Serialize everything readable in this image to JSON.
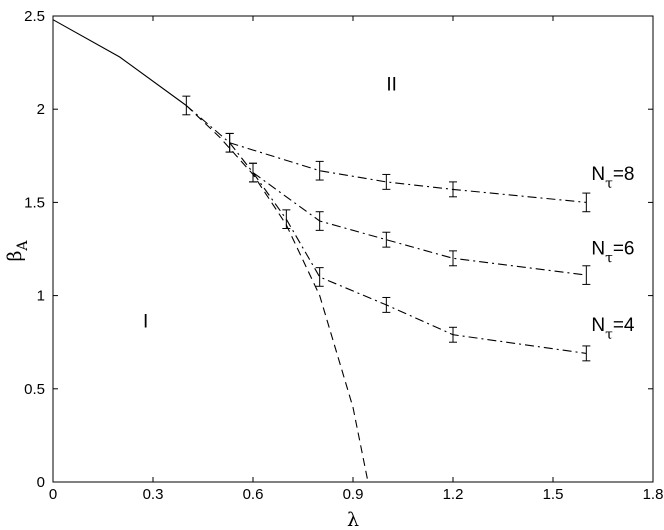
{
  "chart_data": {
    "type": "line",
    "title": "",
    "xlabel": "λ",
    "ylabel": "β",
    "ylabel_sub": "A",
    "xlim": [
      0,
      1.8
    ],
    "ylim": [
      0,
      2.5
    ],
    "x_ticks": [
      0,
      0.3,
      0.6,
      0.9,
      1.2,
      1.5,
      1.8
    ],
    "x_tick_labels": [
      "0",
      "0.3",
      "0.6",
      "0.9",
      "1.2",
      "1.5",
      "1.8"
    ],
    "y_ticks": [
      0,
      0.5,
      1,
      1.5,
      2,
      2.5
    ],
    "y_tick_labels": [
      "0",
      "0.5",
      "1",
      "1.5",
      "2",
      "2.5"
    ],
    "grid": false,
    "series": [
      {
        "style": "solid",
        "points": [
          [
            0,
            2.48
          ],
          [
            0.2,
            2.28
          ],
          [
            0.4,
            2.02
          ]
        ]
      },
      {
        "style": "dashed",
        "points": [
          [
            0.4,
            2.02
          ],
          [
            0.5,
            1.85
          ],
          [
            0.6,
            1.65
          ],
          [
            0.7,
            1.38
          ],
          [
            0.8,
            1.0
          ],
          [
            0.9,
            0.4
          ],
          [
            0.945,
            0.0
          ]
        ]
      },
      {
        "style": "dashdot",
        "points": [
          [
            0.4,
            2.02
          ],
          [
            0.53,
            1.82
          ],
          [
            0.8,
            1.67
          ],
          [
            1.0,
            1.61
          ],
          [
            1.2,
            1.57
          ],
          [
            1.6,
            1.5
          ]
        ],
        "errors": [
          0.05,
          0.05,
          0.05,
          0.04,
          0.04,
          0.05
        ]
      },
      {
        "style": "dashdot",
        "points": [
          [
            0.53,
            1.82
          ],
          [
            0.6,
            1.66
          ],
          [
            0.8,
            1.4
          ],
          [
            1.0,
            1.3
          ],
          [
            1.2,
            1.2
          ],
          [
            1.6,
            1.11
          ]
        ],
        "errors": [
          0.05,
          0.05,
          0.05,
          0.04,
          0.04,
          0.05
        ]
      },
      {
        "style": "dashdot",
        "points": [
          [
            0.6,
            1.66
          ],
          [
            0.7,
            1.41
          ],
          [
            0.8,
            1.1
          ],
          [
            1.0,
            0.95
          ],
          [
            1.2,
            0.79
          ],
          [
            1.6,
            0.69
          ]
        ],
        "errors": [
          0.05,
          0.05,
          0.05,
          0.04,
          0.04,
          0.04
        ]
      }
    ],
    "annotations": [
      {
        "text": "II",
        "x": 1.0,
        "y": 2.1
      },
      {
        "text": "I",
        "x": 0.27,
        "y": 0.83
      },
      {
        "text": "N",
        "sub": "τ",
        "suffix": "=8",
        "x": 1.615,
        "y": 1.62
      },
      {
        "text": "N",
        "sub": "τ",
        "suffix": "=6",
        "x": 1.615,
        "y": 1.22
      },
      {
        "text": "N",
        "sub": "τ",
        "suffix": "=4",
        "x": 1.615,
        "y": 0.81
      }
    ]
  }
}
